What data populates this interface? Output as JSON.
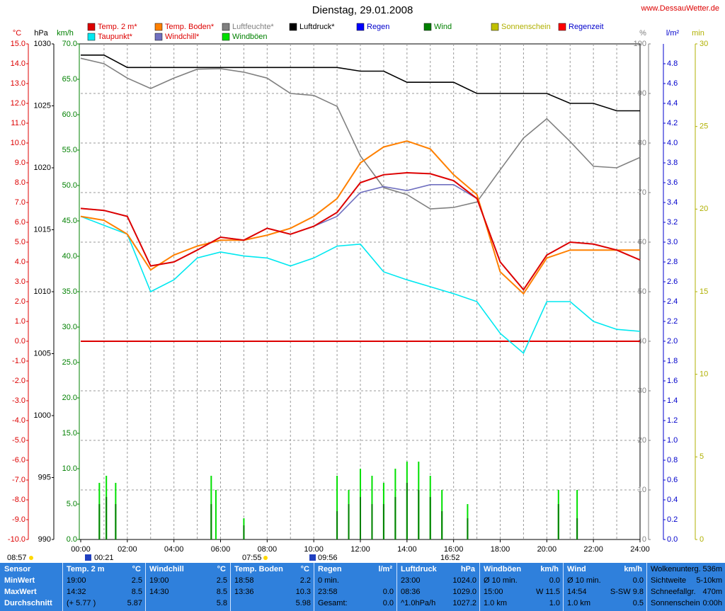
{
  "chart_data": {
    "type": "line",
    "title": "Dienstag, 29.01.2008",
    "source": "www.DessauWetter.de",
    "xlim": [
      0,
      24
    ],
    "xticks": [
      {
        "value": 0,
        "label": "00:00"
      },
      {
        "value": 2,
        "label": "02:00"
      },
      {
        "value": 4,
        "label": "04:00"
      },
      {
        "value": 6,
        "label": "06:00"
      },
      {
        "value": 8,
        "label": "08:00"
      },
      {
        "value": 10,
        "label": "10:00"
      },
      {
        "value": 12,
        "label": "12:00"
      },
      {
        "value": 14,
        "label": "14:00"
      },
      {
        "value": 16,
        "label": "16:00"
      },
      {
        "value": 18,
        "label": "18:00"
      },
      {
        "value": 20,
        "label": "20:00"
      },
      {
        "value": 22,
        "label": "22:00"
      },
      {
        "value": 24,
        "label": "24:00"
      }
    ],
    "xgrid_minor": [
      1,
      3,
      5,
      7,
      9,
      11,
      13,
      15,
      17,
      19,
      21,
      23
    ],
    "grid": true,
    "axes": {
      "temp": {
        "label": "°C",
        "color": "#dd0000",
        "lim": [
          -10,
          15
        ],
        "ticks": [
          {
            "value": 15,
            "label": "15.0"
          },
          {
            "value": 14,
            "label": "14.0"
          },
          {
            "value": 13,
            "label": "13.0"
          },
          {
            "value": 12,
            "label": "12.0"
          },
          {
            "value": 11,
            "label": "11.0"
          },
          {
            "value": 10,
            "label": "10.0"
          },
          {
            "value": 9,
            "label": "9.0"
          },
          {
            "value": 8,
            "label": "8.0"
          },
          {
            "value": 7,
            "label": "7.0"
          },
          {
            "value": 6,
            "label": "6.0"
          },
          {
            "value": 5,
            "label": "5.0"
          },
          {
            "value": 4,
            "label": "4.0"
          },
          {
            "value": 3,
            "label": "3.0"
          },
          {
            "value": 2,
            "label": "2.0"
          },
          {
            "value": 1,
            "label": "1.0"
          },
          {
            "value": 0,
            "label": "0.0"
          },
          {
            "value": -1,
            "label": "-1.0"
          },
          {
            "value": -2,
            "label": "-2.0"
          },
          {
            "value": -3,
            "label": "-3.0"
          },
          {
            "value": -4,
            "label": "-4.0"
          },
          {
            "value": -5,
            "label": "-5.0"
          },
          {
            "value": -6,
            "label": "-6.0"
          },
          {
            "value": -7,
            "label": "-7.0"
          },
          {
            "value": -8,
            "label": "-8.0"
          },
          {
            "value": -9,
            "label": "-9.0"
          },
          {
            "value": -10,
            "label": "-10.0"
          }
        ]
      },
      "press": {
        "label": "hPa",
        "color": "#000000",
        "lim": [
          990,
          1030
        ],
        "ticks": [
          1030,
          1025,
          1020,
          1015,
          1010,
          1005,
          1000,
          995,
          990
        ]
      },
      "wind": {
        "label": "km/h",
        "color": "#008000",
        "lim": [
          0,
          70
        ],
        "ticks": [
          {
            "value": 70,
            "label": "70.0"
          },
          {
            "value": 65,
            "label": "65.0"
          },
          {
            "value": 60,
            "label": "60.0"
          },
          {
            "value": 55,
            "label": "55.0"
          },
          {
            "value": 50,
            "label": "50.0"
          },
          {
            "value": 45,
            "label": "45.0"
          },
          {
            "value": 40,
            "label": "40.0"
          },
          {
            "value": 35,
            "label": "35.0"
          },
          {
            "value": 30,
            "label": "30.0"
          },
          {
            "value": 25,
            "label": "25.0"
          },
          {
            "value": 20,
            "label": "20.0"
          },
          {
            "value": 15,
            "label": "15.0"
          },
          {
            "value": 10,
            "label": "10.0"
          },
          {
            "value": 5,
            "label": "5.0"
          },
          {
            "value": 0,
            "label": "0.0"
          }
        ]
      },
      "hum": {
        "label": "%",
        "color": "#808080",
        "lim": [
          0,
          100
        ],
        "ticks": [
          100,
          90,
          80,
          70,
          60,
          50,
          40,
          30,
          20,
          10,
          0
        ]
      },
      "rain": {
        "label": "l/m²",
        "color": "#0000cc",
        "lim": [
          0,
          5
        ],
        "ticks": [
          4.8,
          4.6,
          4.4,
          4.2,
          {
            "value": 4,
            "label": "4.0"
          },
          3.8,
          3.6,
          3.4,
          3.2,
          {
            "value": 3,
            "label": "3.0"
          },
          2.8,
          2.6,
          2.4,
          2.2,
          {
            "value": 2,
            "label": "2.0"
          },
          1.8,
          1.6,
          1.4,
          1.2,
          {
            "value": 1,
            "label": "1.0"
          },
          0.8,
          0.6,
          0.4,
          0.2,
          {
            "value": 0,
            "label": "0.0"
          }
        ]
      },
      "sun": {
        "label": "min",
        "color": "#b0b000",
        "lim": [
          0,
          30
        ],
        "ticks": [
          30,
          25,
          20,
          15,
          10,
          5,
          0
        ]
      }
    },
    "x": [
      0,
      1,
      2,
      3,
      4,
      5,
      6,
      7,
      8,
      9,
      10,
      11,
      12,
      13,
      14,
      15,
      16,
      17,
      18,
      19,
      20,
      21,
      22,
      23,
      24
    ],
    "series": [
      {
        "name": "Temp. 2 m*",
        "color": "#dd0000",
        "axis": "temp",
        "values": [
          6.7,
          6.6,
          6.3,
          3.8,
          4.0,
          4.6,
          5.25,
          5.1,
          5.7,
          5.4,
          5.8,
          6.5,
          8.0,
          8.4,
          8.5,
          8.45,
          8.1,
          7.2,
          4.0,
          2.6,
          4.35,
          5.0,
          4.9,
          4.6,
          4.1
        ]
      },
      {
        "name": "Taupunkt*",
        "color": "#00e8f0",
        "axis": "temp",
        "values": [
          6.3,
          5.85,
          5.4,
          2.5,
          3.1,
          4.2,
          4.5,
          4.3,
          4.2,
          3.8,
          4.2,
          4.8,
          4.9,
          3.5,
          3.1,
          2.75,
          2.4,
          2.0,
          0.4,
          -0.6,
          2.0,
          2.0,
          1.0,
          0.6,
          0.5
        ]
      },
      {
        "name": "Temp. Boden*",
        "color": "#ff8000",
        "axis": "temp",
        "values": [
          6.3,
          6.1,
          5.4,
          3.6,
          4.35,
          4.8,
          5.1,
          5.1,
          5.35,
          5.7,
          6.3,
          7.2,
          9.0,
          9.8,
          10.1,
          9.7,
          8.4,
          7.4,
          3.5,
          2.4,
          4.2,
          4.6,
          4.6,
          4.6,
          4.6
        ]
      },
      {
        "name": "Windchill*",
        "color": "#7070c0",
        "axis": "temp",
        "values": [
          6.7,
          6.6,
          6.3,
          3.8,
          4.0,
          4.6,
          5.25,
          5.1,
          5.7,
          5.4,
          5.8,
          6.3,
          7.5,
          7.8,
          7.6,
          7.9,
          7.9,
          7.2,
          4.0,
          2.6,
          4.35,
          5.0,
          4.9,
          4.6,
          4.1
        ]
      },
      {
        "name": "Luftfeuchte*",
        "color": "#808080",
        "axis": "hum",
        "values": [
          97.1,
          96,
          93.1,
          91,
          93.1,
          94.9,
          95,
          94.3,
          93.1,
          90,
          89.6,
          87.4,
          77.4,
          71,
          69.6,
          66.7,
          67,
          68.1,
          74.6,
          81,
          84.9,
          80.3,
          75.3,
          75,
          77.1
        ]
      },
      {
        "name": "Windböen",
        "color": "#00e000",
        "axis": "wind",
        "kind": "bar",
        "x": [
          0.8,
          1.1,
          1.5,
          5.6,
          5.8,
          7.0,
          11.0,
          11.5,
          12.0,
          12.5,
          13.0,
          13.5,
          14.0,
          14.5,
          15.0,
          15.5,
          16.6,
          20.5,
          21.3
        ],
        "values": [
          8,
          9,
          8,
          9,
          7,
          3,
          9,
          7,
          10,
          9,
          8,
          10,
          11,
          11,
          9,
          7,
          5,
          7,
          7
        ]
      },
      {
        "name": "Luftdruck*",
        "color": "#000000",
        "axis": "press",
        "values": [
          1029.1,
          1029.1,
          1028.1,
          1028.1,
          1028.1,
          1028.1,
          1028.1,
          1028.1,
          1028.1,
          1028.1,
          1028.1,
          1028.1,
          1027.8,
          1027.8,
          1026.9,
          1026.9,
          1026.9,
          1026.0,
          1026.0,
          1026.0,
          1026.0,
          1025.2,
          1025.2,
          1024.6,
          1024.6
        ]
      },
      {
        "name": "Regen",
        "color": "#0000ff",
        "axis": "rain"
      },
      {
        "name": "Wind",
        "color": "#008000",
        "axis": "wind",
        "kind": "bar",
        "x": [
          0.8,
          1.1,
          1.5,
          5.6,
          7.0,
          11.0,
          11.5,
          12.0,
          12.5,
          13.0,
          13.5,
          14.0,
          14.5,
          15.0,
          15.5,
          16.6,
          20.5,
          21.3
        ],
        "values": [
          5,
          6,
          5,
          5,
          2,
          4,
          5,
          6,
          5,
          5,
          6,
          8,
          7,
          6,
          4,
          3,
          5,
          3
        ]
      },
      {
        "name": "Sonnenschein",
        "color": "#c0c000",
        "axis": "sun"
      },
      {
        "name": "Regenzeit",
        "color": "#ff0000",
        "axis": "rain"
      }
    ],
    "annotations": [
      "08:57",
      "00:21",
      "07:55",
      "09:56",
      "16:52"
    ]
  },
  "table": {
    "columns": [
      {
        "title": "Sensor",
        "rows": [
          [
            "MinWert"
          ],
          [
            "MaxWert"
          ],
          [
            "Durchschnitt"
          ]
        ]
      },
      {
        "title": "Temp. 2 m",
        "unit": "°C",
        "rows": [
          [
            "19:00",
            "2.5"
          ],
          [
            "14:32",
            "8.5"
          ],
          [
            "(+ 5.77 )",
            "5.87"
          ]
        ]
      },
      {
        "title": "Windchill",
        "unit": "°C",
        "rows": [
          [
            "19:00",
            "2.5"
          ],
          [
            "14:30",
            "8.5"
          ],
          [
            null,
            "5.8"
          ]
        ]
      },
      {
        "title": "Temp. Boden",
        "unit": "°C",
        "rows": [
          [
            "18:58",
            "2.2"
          ],
          [
            "13:36",
            "10.3"
          ],
          [
            null,
            "5.98"
          ]
        ]
      },
      {
        "title": "Regen",
        "unit": "l/m²",
        "rows": [
          [
            "0 min.",
            null
          ],
          [
            "23:58",
            "0.0"
          ],
          [
            "Gesamt:",
            "0.0"
          ]
        ]
      },
      {
        "title": "Luftdruck",
        "unit": "hPa",
        "rows": [
          [
            "23:00",
            "1024.0"
          ],
          [
            "08:36",
            "1029.0"
          ],
          [
            "^1.0hPa/h",
            "1027.2"
          ]
        ]
      },
      {
        "title": "Windböen",
        "unit": "km/h",
        "rows": [
          [
            "Ø 10 min.",
            "0.0"
          ],
          [
            "15:00",
            "W 11.5"
          ],
          [
            "1.0 km",
            "1.0"
          ]
        ]
      },
      {
        "title": "Wind",
        "unit": "km/h",
        "rows": [
          [
            "Ø 10 min.",
            "0.0"
          ],
          [
            "14:54",
            "S-SW 9.8"
          ],
          [
            "1.0 km",
            "0.5"
          ]
        ]
      },
      {
        "rows": [
          [
            "Wolkenunterg.",
            "536m"
          ],
          [
            "Sichtweite",
            "5-10km"
          ],
          [
            "Schneefallgr.",
            "470m"
          ],
          [
            "Sonnenschein",
            "0:00h"
          ]
        ]
      }
    ]
  }
}
